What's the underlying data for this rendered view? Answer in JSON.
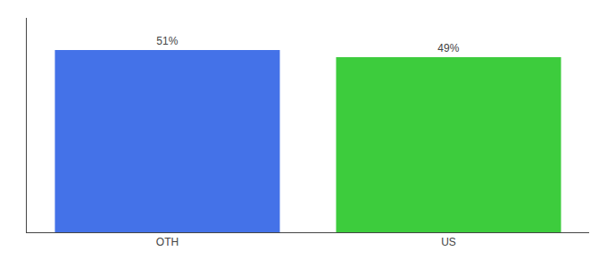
{
  "chart_data": {
    "type": "bar",
    "categories": [
      "OTH",
      "US"
    ],
    "values": [
      51,
      49
    ],
    "value_labels": [
      "51%",
      "49%"
    ],
    "colors": [
      "#4472e8",
      "#3dcc3d"
    ],
    "ylim": [
      0,
      60
    ],
    "data_labels": true,
    "tick_labels": "x",
    "grid": false
  }
}
